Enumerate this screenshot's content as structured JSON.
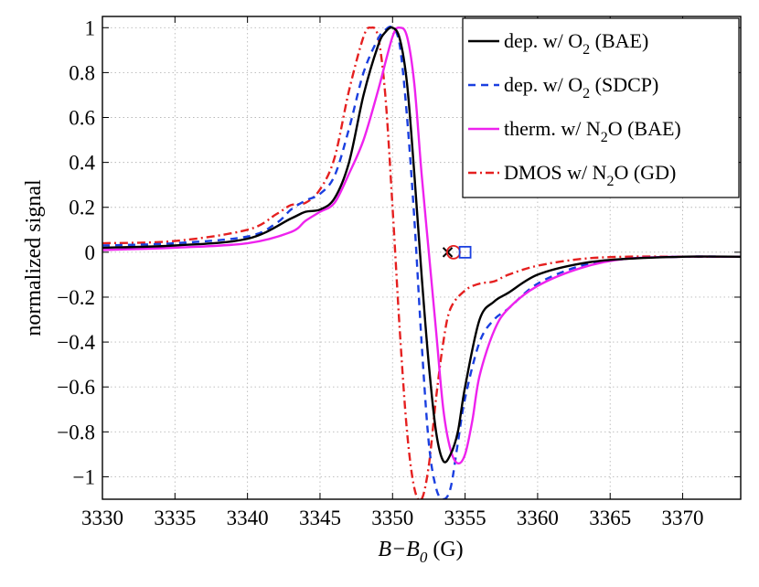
{
  "chart_data": {
    "type": "line",
    "xlabel": "B−B0 (G)",
    "xlabel_parts": {
      "main": "B−B",
      "sub": "0",
      "unit": " (G)"
    },
    "ylabel": "normalized signal",
    "xlim": [
      3330,
      3374
    ],
    "ylim": [
      -1.1,
      1.05
    ],
    "x_ticks": [
      3330,
      3335,
      3340,
      3345,
      3350,
      3355,
      3360,
      3365,
      3370
    ],
    "x_tick_labels": [
      "3330",
      "3335",
      "3340",
      "3345",
      "3350",
      "3355",
      "3360",
      "3365",
      "3370"
    ],
    "y_ticks": [
      -1,
      -0.8,
      -0.6,
      -0.4,
      -0.2,
      0,
      0.2,
      0.4,
      0.6,
      0.8,
      1
    ],
    "y_tick_labels": [
      "−1",
      "−0.8",
      "−0.6",
      "−0.4",
      "−0.2",
      "0",
      "0.2",
      "0.4",
      "0.6",
      "0.8",
      "1"
    ],
    "grid": true,
    "legend_position": "top-right",
    "series": [
      {
        "name": "dep. w/ O2 (BAE)",
        "label_parts": [
          "dep. w/ O",
          "2",
          " (BAE)"
        ],
        "color": "#000000",
        "dash": "solid",
        "x": [
          3330,
          3335,
          3340,
          3343,
          3344,
          3345,
          3346,
          3347,
          3348,
          3349,
          3349.5,
          3350,
          3350.5,
          3351,
          3351.5,
          3352,
          3352.5,
          3353,
          3353.5,
          3354,
          3354.5,
          3355,
          3356,
          3357,
          3358,
          3360,
          3363,
          3366,
          3370,
          3374
        ],
        "y": [
          0.02,
          0.03,
          0.06,
          0.15,
          0.18,
          0.19,
          0.24,
          0.4,
          0.7,
          0.92,
          0.98,
          1.0,
          0.95,
          0.75,
          0.35,
          -0.1,
          -0.5,
          -0.8,
          -0.93,
          -0.9,
          -0.8,
          -0.6,
          -0.3,
          -0.22,
          -0.18,
          -0.1,
          -0.05,
          -0.03,
          -0.02,
          -0.02
        ]
      },
      {
        "name": "dep. w/ O2 (SDCP)",
        "label_parts": [
          "dep. w/ O",
          "2",
          " (SDCP)"
        ],
        "color": "#1a3fe0",
        "dash": "8,6",
        "x": [
          3330,
          3335,
          3340,
          3342,
          3343,
          3344,
          3345,
          3346,
          3347,
          3348,
          3349,
          3349.5,
          3350,
          3350.5,
          3351,
          3351.5,
          3352,
          3352.5,
          3353,
          3353.5,
          3354,
          3354.5,
          3355,
          3356,
          3357,
          3358,
          3360,
          3363,
          3366,
          3370,
          3374
        ],
        "y": [
          0.03,
          0.04,
          0.07,
          0.13,
          0.19,
          0.23,
          0.26,
          0.34,
          0.55,
          0.8,
          0.95,
          0.99,
          1.0,
          0.92,
          0.6,
          0.15,
          -0.4,
          -0.85,
          -1.05,
          -1.1,
          -1.05,
          -0.85,
          -0.65,
          -0.4,
          -0.3,
          -0.25,
          -0.14,
          -0.06,
          -0.03,
          -0.02,
          -0.02
        ]
      },
      {
        "name": "therm. w/ N2O (BAE)",
        "label_parts": [
          "therm. w/ N",
          "2",
          "O (BAE)"
        ],
        "color": "#ee22ee",
        "dash": "solid",
        "x": [
          3330,
          3335,
          3340,
          3343,
          3344,
          3345,
          3346,
          3347,
          3348,
          3349,
          3350,
          3350.5,
          3351,
          3351.5,
          3352,
          3352.5,
          3353,
          3353.5,
          3354,
          3354.5,
          3355,
          3355.5,
          3356,
          3357,
          3358,
          3360,
          3363,
          3366,
          3370,
          3374
        ],
        "y": [
          0.01,
          0.02,
          0.04,
          0.09,
          0.14,
          0.18,
          0.22,
          0.35,
          0.5,
          0.72,
          0.96,
          1.0,
          0.96,
          0.75,
          0.35,
          0.0,
          -0.35,
          -0.7,
          -0.88,
          -0.94,
          -0.9,
          -0.75,
          -0.55,
          -0.35,
          -0.25,
          -0.15,
          -0.07,
          -0.03,
          -0.02,
          -0.02
        ]
      },
      {
        "name": "DMOS w/ N2O (GD)",
        "label_parts": [
          "DMOS w/ N",
          "2",
          "O (GD)"
        ],
        "color": "#e52020",
        "dash": "9,4,2,4",
        "x": [
          3330,
          3335,
          3340,
          3342,
          3343,
          3344,
          3345,
          3346,
          3347,
          3348,
          3348.5,
          3349,
          3349.5,
          3350,
          3350.5,
          3351,
          3351.5,
          3352,
          3352.5,
          3353,
          3353.5,
          3354,
          3355,
          3356,
          3357,
          3358,
          3360,
          3363,
          3366,
          3370,
          3374
        ],
        "y": [
          0.04,
          0.05,
          0.1,
          0.17,
          0.21,
          0.22,
          0.28,
          0.42,
          0.72,
          0.96,
          1.0,
          0.96,
          0.7,
          0.2,
          -0.35,
          -0.8,
          -1.05,
          -1.1,
          -0.95,
          -0.65,
          -0.4,
          -0.25,
          -0.17,
          -0.14,
          -0.13,
          -0.1,
          -0.06,
          -0.03,
          -0.02,
          -0.02,
          -0.02
        ]
      }
    ],
    "markers": [
      {
        "name": "cross-marker",
        "shape": "x",
        "x": 3353.8,
        "y": 0.0,
        "color": "#000000"
      },
      {
        "name": "circle-marker",
        "shape": "circle",
        "x": 3354.2,
        "y": 0.0,
        "color": "#e52020"
      },
      {
        "name": "square-marker",
        "shape": "square",
        "x": 3355.0,
        "y": 0.0,
        "color": "#1a3fe0"
      }
    ]
  }
}
